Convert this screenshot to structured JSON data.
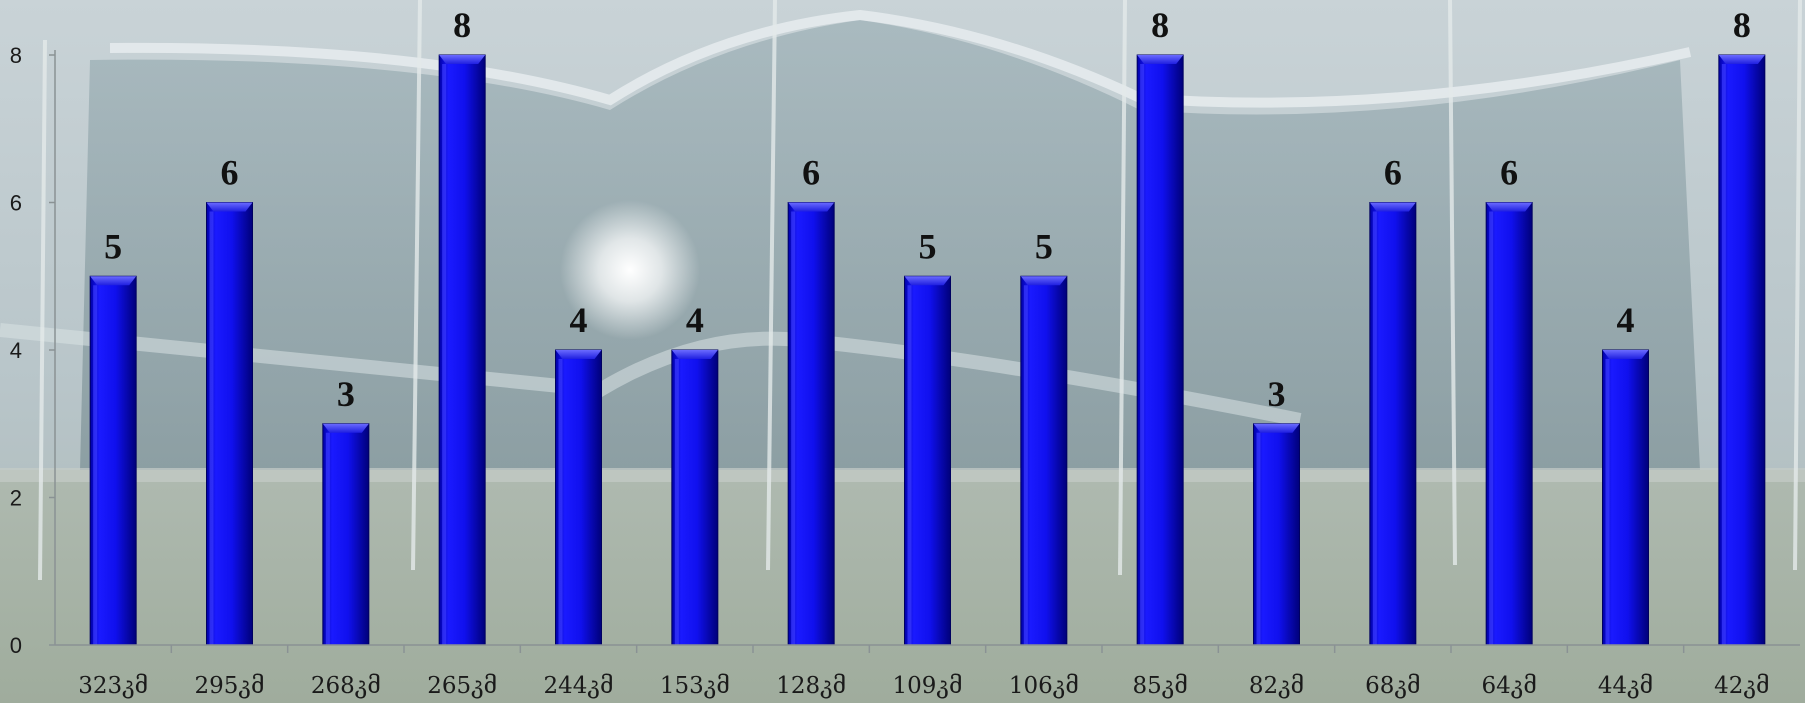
{
  "chart_data": {
    "type": "bar",
    "title": "",
    "xlabel": "",
    "ylabel": "",
    "categories": [
      "323კმ",
      "295კმ",
      "268კმ",
      "265კმ",
      "244კმ",
      "153კმ",
      "128კმ",
      "109კმ",
      "106კმ",
      "85კმ",
      "82კმ",
      "68კმ",
      "64კმ",
      "44კმ",
      "42კმ"
    ],
    "values": [
      5,
      6,
      3,
      8,
      4,
      4,
      6,
      5,
      5,
      8,
      3,
      6,
      6,
      4,
      8
    ],
    "ylim": [
      0,
      8
    ],
    "yticks": [
      0,
      2,
      4,
      6,
      8
    ],
    "data_labels": true,
    "grid": false,
    "legend": "none",
    "colors": {
      "bar": "#1010ee",
      "bar_light": "#4a4aff",
      "bar_dark": "#00007a",
      "axis": "#8a9294"
    }
  }
}
